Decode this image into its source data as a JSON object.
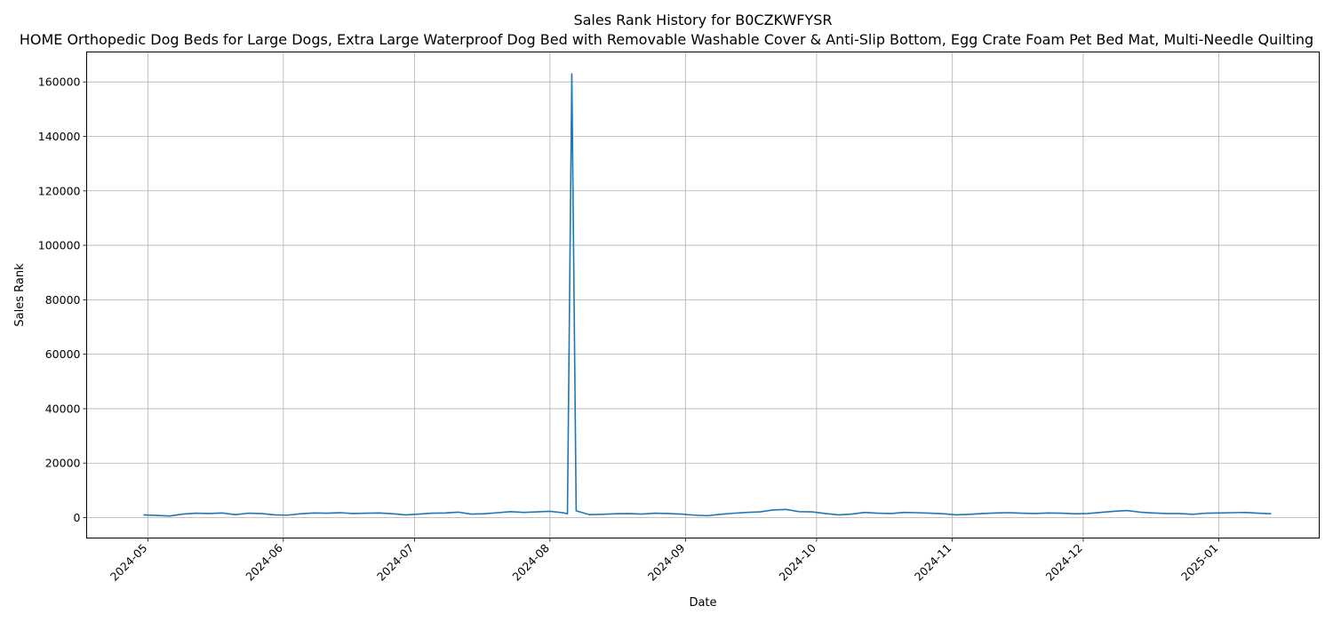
{
  "chart_data": {
    "type": "line",
    "title": "Sales Rank History for B0CZKWFYSR",
    "subtitle": "HOME Orthopedic Dog Beds for Large Dogs, Extra Large Waterproof Dog Bed with Removable Washable Cover & Anti-Slip Bottom, Egg Crate Foam Pet Bed Mat, Multi-Needle Quilting",
    "xlabel": "Date",
    "ylabel": "Sales Rank",
    "x_ticks": [
      "2024-05",
      "2024-06",
      "2024-07",
      "2024-08",
      "2024-09",
      "2024-10",
      "2024-11",
      "2024-12",
      "2025-01"
    ],
    "y_ticks": [
      "0",
      "20000",
      "40000",
      "60000",
      "80000",
      "100000",
      "120000",
      "140000",
      "160000"
    ],
    "xlim": [
      "2024-04-17",
      "2025-01-24"
    ],
    "ylim": [
      -7500,
      171000
    ],
    "grid": true,
    "line_color": "#1f77b4",
    "series": [
      {
        "x": [
          "2024-04-30",
          "2024-05-03",
          "2024-05-06",
          "2024-05-09",
          "2024-05-12",
          "2024-05-15",
          "2024-05-18",
          "2024-05-21",
          "2024-05-24",
          "2024-05-27",
          "2024-05-30",
          "2024-06-02",
          "2024-06-05",
          "2024-06-08",
          "2024-06-11",
          "2024-06-14",
          "2024-06-17",
          "2024-06-20",
          "2024-06-23",
          "2024-06-26",
          "2024-06-29",
          "2024-07-02",
          "2024-07-05",
          "2024-07-08",
          "2024-07-11",
          "2024-07-14",
          "2024-07-17",
          "2024-07-20",
          "2024-07-23",
          "2024-07-26",
          "2024-07-29",
          "2024-08-01",
          "2024-08-04",
          "2024-08-05",
          "2024-08-06",
          "2024-08-07",
          "2024-08-10",
          "2024-08-13",
          "2024-08-16",
          "2024-08-19",
          "2024-08-22",
          "2024-08-25",
          "2024-08-28",
          "2024-08-31",
          "2024-09-03",
          "2024-09-06",
          "2024-09-09",
          "2024-09-12",
          "2024-09-15",
          "2024-09-18",
          "2024-09-21",
          "2024-09-24",
          "2024-09-27",
          "2024-09-30",
          "2024-10-03",
          "2024-10-06",
          "2024-10-09",
          "2024-10-12",
          "2024-10-15",
          "2024-10-18",
          "2024-10-21",
          "2024-10-24",
          "2024-10-27",
          "2024-10-30",
          "2024-11-02",
          "2024-11-05",
          "2024-11-08",
          "2024-11-11",
          "2024-11-14",
          "2024-11-17",
          "2024-11-20",
          "2024-11-23",
          "2024-11-26",
          "2024-11-29",
          "2024-12-02",
          "2024-12-05",
          "2024-12-08",
          "2024-12-11",
          "2024-12-14",
          "2024-12-17",
          "2024-12-20",
          "2024-12-23",
          "2024-12-26",
          "2024-12-29",
          "2025-01-01",
          "2025-01-04",
          "2025-01-07",
          "2025-01-10",
          "2025-01-13"
        ],
        "values": [
          1000,
          800,
          600,
          1300,
          1600,
          1500,
          1700,
          1100,
          1600,
          1500,
          1000,
          900,
          1400,
          1700,
          1600,
          1800,
          1500,
          1600,
          1700,
          1400,
          1000,
          1300,
          1600,
          1700,
          2000,
          1300,
          1400,
          1800,
          2200,
          1900,
          2100,
          2300,
          1800,
          1400,
          163000,
          2500,
          1100,
          1200,
          1400,
          1500,
          1300,
          1600,
          1500,
          1300,
          900,
          700,
          1200,
          1600,
          1900,
          2100,
          2800,
          3000,
          2200,
          2100,
          1500,
          1000,
          1300,
          1900,
          1600,
          1500,
          1900,
          1800,
          1600,
          1400,
          1000,
          1200,
          1500,
          1700,
          1800,
          1600,
          1500,
          1700,
          1600,
          1400,
          1500,
          1900,
          2300,
          2600,
          2000,
          1700,
          1500,
          1500,
          1200,
          1600,
          1700,
          1800,
          1900,
          1600,
          1400
        ]
      }
    ]
  }
}
